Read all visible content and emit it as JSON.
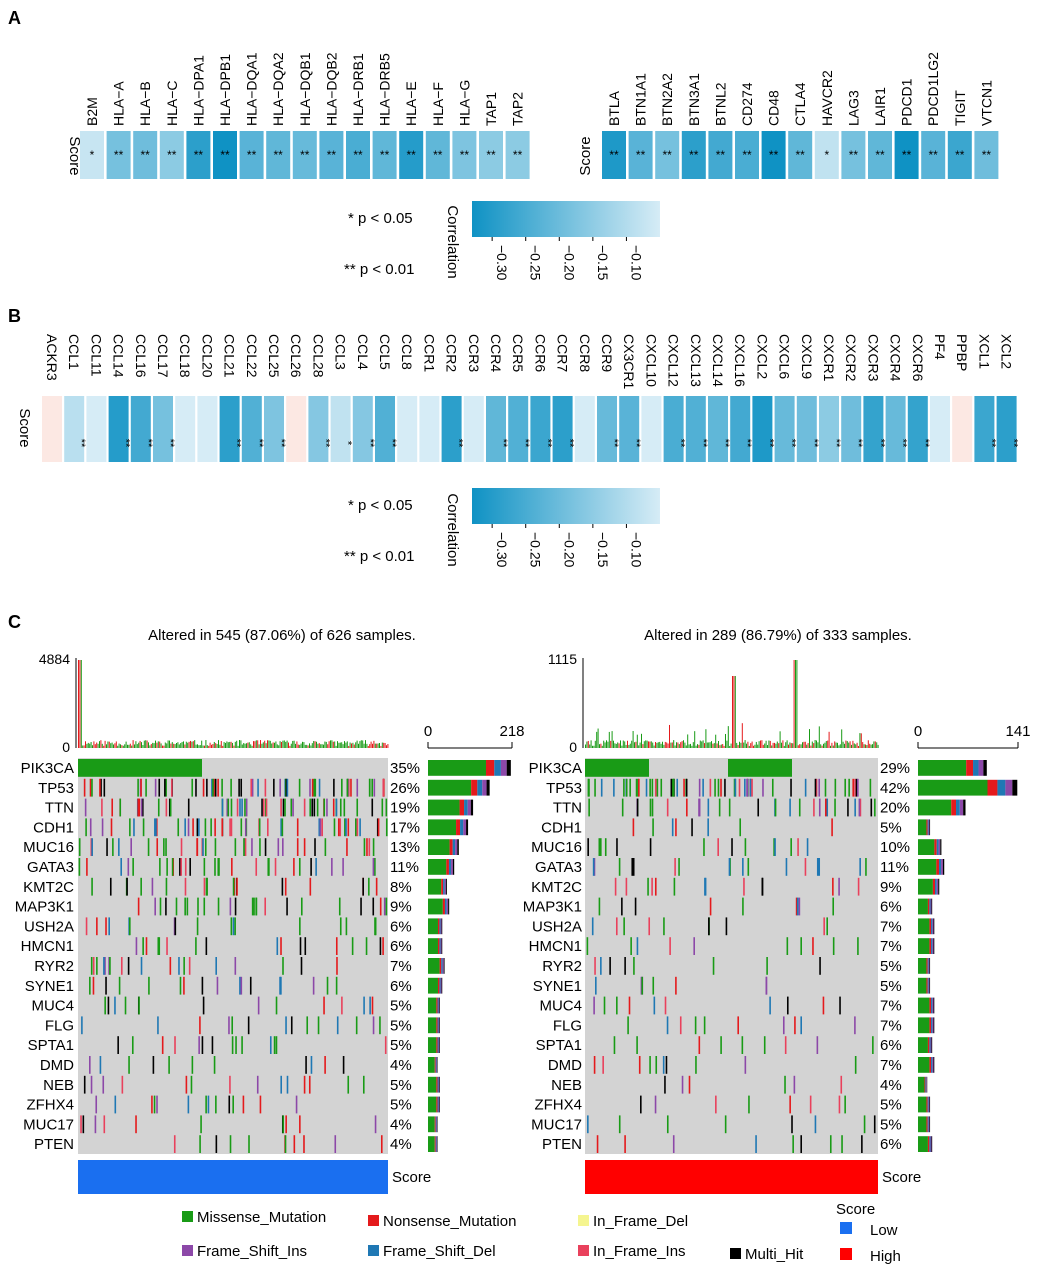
{
  "panel_labels": {
    "a": "A",
    "b": "B",
    "c": "C"
  },
  "colors": {
    "corr_strong": "#0f92c4",
    "corr_weak": "#d6ecf6",
    "pos_weak": "#fce8e3",
    "grid_bg": "#d3d3d3",
    "Missense_Mutation": "#199b16",
    "Nonsense_Mutation": "#e41a1c",
    "In_Frame_Del": "#f5f590",
    "Frame_Shift_Ins": "#8c48a8",
    "Frame_Shift_Del": "#1f78b4",
    "In_Frame_Ins": "#e9415c",
    "Multi_Hit": "#000000",
    "score_low": "#1a6ff0",
    "score_high": "#ff0000"
  },
  "chart_data": [
    {
      "type": "heatmap",
      "panel": "A",
      "row_label": "Score",
      "blocks": [
        {
          "genes": [
            "B2M",
            "HLA−A",
            "HLA−B",
            "HLA−C",
            "HLA−DPA1",
            "HLA−DPB1",
            "HLA−DQA1",
            "HLA−DQA2",
            "HLA−DQB1",
            "HLA−DQB2",
            "HLA−DRB1",
            "HLA−DRB5",
            "HLA−E",
            "HLA−F",
            "HLA−G",
            "TAP1",
            "TAP2"
          ],
          "values": [
            -0.08,
            -0.19,
            -0.2,
            -0.16,
            -0.29,
            -0.33,
            -0.23,
            -0.22,
            -0.21,
            -0.23,
            -0.25,
            -0.22,
            -0.3,
            -0.22,
            -0.18,
            -0.16,
            -0.16
          ],
          "significance": [
            "*",
            "**",
            "**",
            "**",
            "**",
            "**",
            "**",
            "**",
            "**",
            "**",
            "**",
            "**",
            "**",
            "**",
            "**",
            "**",
            "**"
          ]
        },
        {
          "genes": [
            "BTLA",
            "BTN1A1",
            "BTN2A2",
            "BTN3A1",
            "BTNL2",
            "CD274",
            "CD48",
            "CTLA4",
            "HAVCR2",
            "LAG3",
            "LAIR1",
            "PDCD1",
            "PDCD1LG2",
            "TIGIT",
            "VTCN1"
          ],
          "values": [
            -0.31,
            -0.23,
            -0.19,
            -0.29,
            -0.26,
            -0.25,
            -0.33,
            -0.22,
            -0.09,
            -0.19,
            -0.22,
            -0.33,
            -0.23,
            -0.27,
            -0.2
          ],
          "significance": [
            "**",
            "**",
            "**",
            "**",
            "**",
            "**",
            "**",
            "**",
            "*",
            "**",
            "**",
            "**",
            "**",
            "**",
            "**"
          ]
        }
      ],
      "legend": {
        "title": "Correlation",
        "ticks": [
          "−0.30",
          "−0.25",
          "−0.20",
          "−0.15",
          "−0.10"
        ],
        "range": [
          -0.33,
          -0.05
        ],
        "notes": [
          "* p < 0.05",
          "** p < 0.01"
        ]
      }
    },
    {
      "type": "heatmap",
      "panel": "B",
      "row_label": "Score",
      "genes": [
        "ACKR3",
        "CCL1",
        "CCL11",
        "CCL14",
        "CCL16",
        "CCL17",
        "CCL18",
        "CCL20",
        "CCL21",
        "CCL22",
        "CCL25",
        "CCL26",
        "CCL28",
        "CCL3",
        "CCL4",
        "CCL5",
        "CCL8",
        "CCR1",
        "CCR2",
        "CCR3",
        "CCR4",
        "CCR5",
        "CCR6",
        "CCR7",
        "CCR8",
        "CCR9",
        "CX3CR1",
        "CXCL10",
        "CXCL12",
        "CXCL13",
        "CXCL14",
        "CXCL16",
        "CXCL2",
        "CXCL6",
        "CXCL9",
        "CXCR1",
        "CXCR2",
        "CXCR3",
        "CXCR4",
        "CXCR6",
        "PF4",
        "PPBP",
        "XCL1",
        "XCL2"
      ],
      "values": [
        0.03,
        -0.1,
        -0.03,
        -0.3,
        -0.26,
        -0.19,
        -0.04,
        -0.04,
        -0.29,
        -0.24,
        -0.18,
        0.02,
        -0.17,
        -0.09,
        -0.17,
        -0.24,
        -0.04,
        -0.04,
        -0.29,
        -0.04,
        -0.22,
        -0.24,
        -0.27,
        -0.29,
        -0.04,
        -0.21,
        -0.23,
        -0.05,
        -0.25,
        -0.24,
        -0.22,
        -0.26,
        -0.31,
        -0.21,
        -0.2,
        -0.16,
        -0.2,
        -0.28,
        -0.21,
        -0.28,
        -0.04,
        0.02,
        -0.27,
        -0.29
      ],
      "significance": [
        "",
        "**",
        "",
        "**",
        "**",
        "**",
        "",
        "",
        "**",
        "**",
        "**",
        "",
        "**",
        "*",
        "**",
        "**",
        "",
        "",
        "**",
        "",
        "**",
        "**",
        "**",
        "**",
        "",
        "**",
        "**",
        "",
        "**",
        "**",
        "**",
        "**",
        "**",
        "**",
        "**",
        "**",
        "**",
        "**",
        "**",
        "**",
        "",
        "",
        "**",
        "**"
      ],
      "legend": {
        "title": "Correlation",
        "ticks": [
          "−0.30",
          "−0.25",
          "−0.20",
          "−0.15",
          "−0.10"
        ],
        "range": [
          -0.33,
          -0.05
        ],
        "notes": [
          "* p < 0.05",
          "** p < 0.01"
        ]
      }
    },
    {
      "type": "oncoplot",
      "panel": "C",
      "groups": [
        {
          "title": "Altered in 545 (87.06%) of 626 samples.",
          "tmb_max": "4884",
          "tmb_min": "0",
          "bar_max_label": "218",
          "bar_min_label": "0",
          "score_label": "Score",
          "score_group": "Low",
          "genes": [
            "PIK3CA",
            "TP53",
            "TTN",
            "CDH1",
            "MUC16",
            "GATA3",
            "KMT2C",
            "MAP3K1",
            "USH2A",
            "HMCN1",
            "RYR2",
            "SYNE1",
            "MUC4",
            "FLG",
            "SPTA1",
            "DMD",
            "NEB",
            "ZFHX4",
            "MUC17",
            "PTEN"
          ],
          "percents": [
            "35%",
            "26%",
            "19%",
            "17%",
            "13%",
            "11%",
            "8%",
            "9%",
            "6%",
            "6%",
            "7%",
            "6%",
            "5%",
            "5%",
            "5%",
            "4%",
            "5%",
            "5%",
            "4%",
            "4%"
          ],
          "counts": [
            215,
            160,
            117,
            104,
            80,
            68,
            49,
            55,
            37,
            37,
            43,
            37,
            31,
            31,
            31,
            25,
            31,
            31,
            25,
            25
          ]
        },
        {
          "title": "Altered in 289 (86.79%) of 333 samples.",
          "tmb_max": "1115",
          "tmb_min": "0",
          "bar_max_label": "141",
          "bar_min_label": "0",
          "score_label": "Score",
          "score_group": "High",
          "genes": [
            "PIK3CA",
            "TP53",
            "TTN",
            "CDH1",
            "MUC16",
            "GATA3",
            "KMT2C",
            "MAP3K1",
            "USH2A",
            "HMCN1",
            "RYR2",
            "SYNE1",
            "MUC4",
            "FLG",
            "SPTA1",
            "DMD",
            "NEB",
            "ZFHX4",
            "MUC17",
            "PTEN"
          ],
          "percents": [
            "29%",
            "42%",
            "20%",
            "5%",
            "10%",
            "11%",
            "9%",
            "6%",
            "7%",
            "7%",
            "5%",
            "5%",
            "7%",
            "7%",
            "6%",
            "7%",
            "4%",
            "5%",
            "5%",
            "6%"
          ],
          "counts": [
            97,
            140,
            67,
            17,
            33,
            37,
            30,
            20,
            23,
            23,
            17,
            17,
            23,
            23,
            20,
            23,
            13,
            17,
            17,
            20
          ]
        }
      ],
      "legend": {
        "items": [
          "Missense_Mutation",
          "Nonsense_Mutation",
          "In_Frame_Del",
          "Frame_Shift_Ins",
          "Frame_Shift_Del",
          "In_Frame_Ins",
          "Multi_Hit"
        ],
        "score_title": "Score",
        "score_items": [
          "Low",
          "High"
        ]
      }
    }
  ]
}
